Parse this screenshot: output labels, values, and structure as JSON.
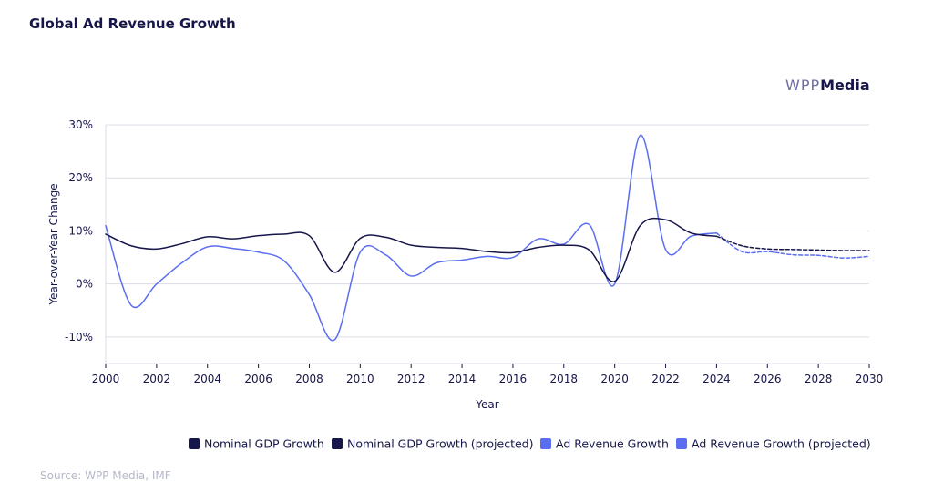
{
  "chart_data": {
    "type": "line",
    "title": "Global Ad Revenue Growth",
    "xlabel": "Year",
    "ylabel": "Year-over-Year Change",
    "xlim": [
      2000,
      2030
    ],
    "ylim": [
      -15,
      30
    ],
    "x_ticks": [
      "2000",
      "2002",
      "2004",
      "2006",
      "2008",
      "2010",
      "2012",
      "2014",
      "2016",
      "2018",
      "2020",
      "2022",
      "2024",
      "2026",
      "2028",
      "2030"
    ],
    "y_ticks": [
      "30%",
      "20%",
      "10%",
      "0%",
      "-10%"
    ],
    "y_tick_values": [
      30,
      20,
      10,
      0,
      -10
    ],
    "grid": true,
    "legend_position": "bottom-right",
    "series": [
      {
        "name": "Nominal GDP Growth",
        "color": "#16164a",
        "style": "solid",
        "x": [
          2000,
          2001,
          2002,
          2003,
          2004,
          2005,
          2006,
          2007,
          2008,
          2009,
          2010,
          2011,
          2012,
          2013,
          2014,
          2015,
          2016,
          2017,
          2018,
          2019,
          2020,
          2021,
          2022,
          2023,
          2024
        ],
        "values": [
          9.4,
          7.2,
          6.6,
          7.6,
          8.9,
          8.5,
          9.1,
          9.4,
          9.1,
          2.2,
          8.6,
          8.8,
          7.3,
          6.9,
          6.7,
          6.1,
          5.9,
          6.9,
          7.3,
          6.4,
          0.5,
          11.0,
          12.1,
          9.6,
          9.0
        ]
      },
      {
        "name": "Nominal GDP Growth (projected)",
        "color": "#16164a",
        "style": "dashed",
        "x": [
          2024,
          2025,
          2026,
          2027,
          2028,
          2029,
          2030
        ],
        "values": [
          9.0,
          7.2,
          6.6,
          6.5,
          6.4,
          6.3,
          6.3
        ]
      },
      {
        "name": "Ad Revenue Growth",
        "color": "#5b6ef0",
        "style": "solid",
        "x": [
          2000,
          2001,
          2002,
          2003,
          2004,
          2005,
          2006,
          2007,
          2008,
          2009,
          2010,
          2011,
          2012,
          2013,
          2014,
          2015,
          2016,
          2017,
          2018,
          2019,
          2020,
          2021,
          2022,
          2023,
          2024
        ],
        "values": [
          11.0,
          -4.0,
          0.0,
          4.0,
          7.0,
          6.7,
          6.0,
          4.4,
          -2.0,
          -10.5,
          6.0,
          5.5,
          1.5,
          4.0,
          4.5,
          5.2,
          5.0,
          8.5,
          7.5,
          11.2,
          0.0,
          28.0,
          6.5,
          9.0,
          9.6
        ]
      },
      {
        "name": "Ad Revenue Growth (projected)",
        "color": "#5b6ef0",
        "style": "dashed",
        "x": [
          2024,
          2025,
          2026,
          2027,
          2028,
          2029,
          2030
        ],
        "values": [
          9.6,
          6.1,
          6.1,
          5.5,
          5.4,
          4.9,
          5.2
        ]
      }
    ]
  },
  "brand": {
    "part1": "WPP",
    "part2": "Media"
  },
  "source": "Source: WPP Media, IMF"
}
